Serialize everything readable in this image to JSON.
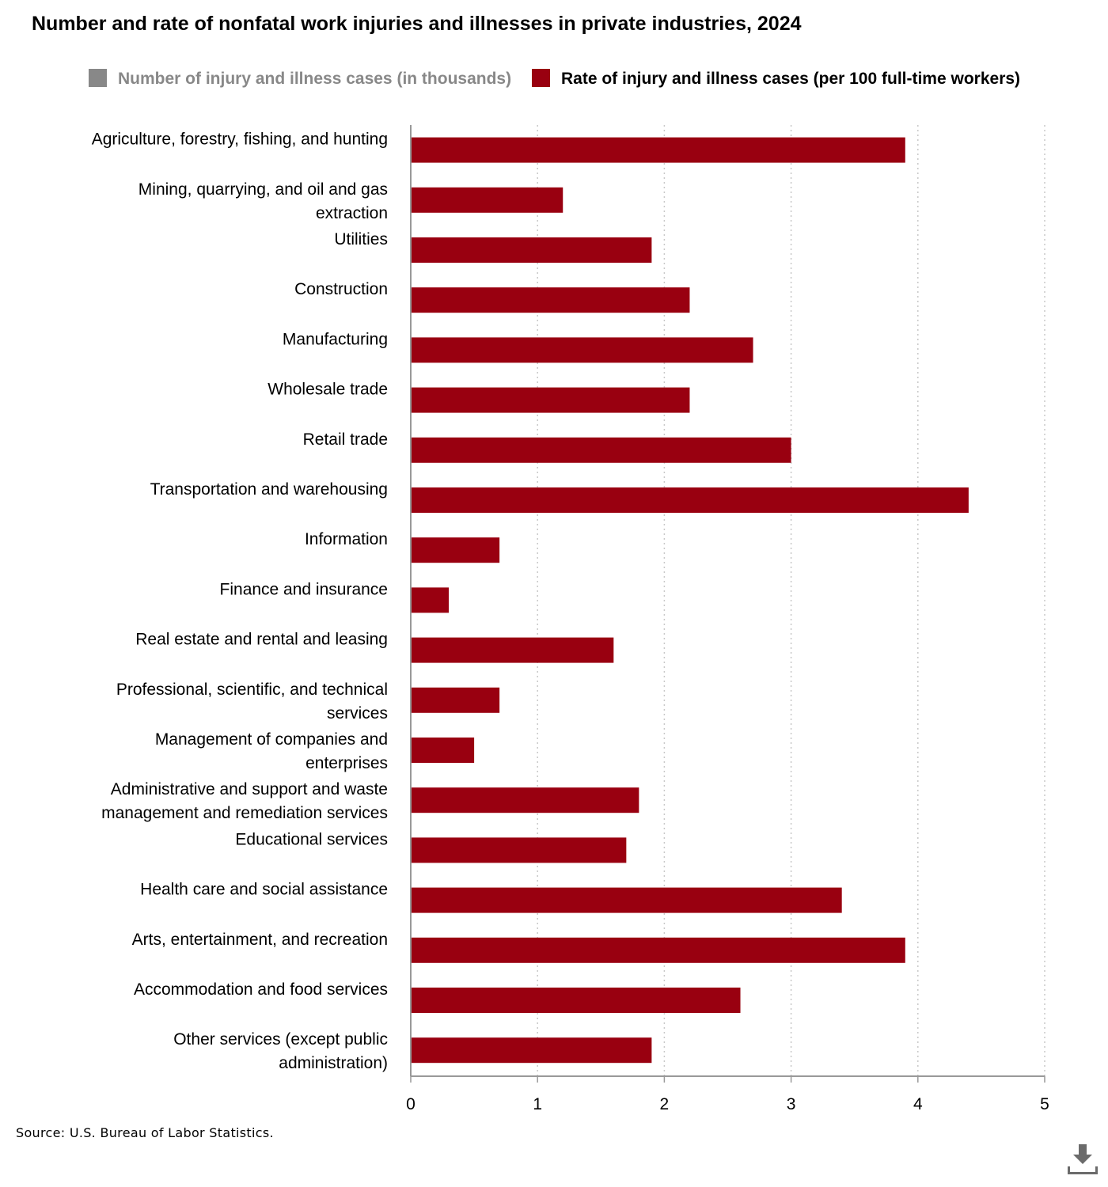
{
  "chart_data": {
    "type": "bar",
    "orientation": "horizontal",
    "title": "Number and rate of nonfatal work injuries and illnesses in private industries, 2024",
    "legend": {
      "placement": "top",
      "items": [
        {
          "label": "Number of injury and illness cases (in thousands)",
          "color": "#888888",
          "visible": false
        },
        {
          "label": "Rate of injury and illness cases (per 100 full-time workers)",
          "color": "#990010",
          "visible": true
        }
      ]
    },
    "categories": [
      "Agriculture, forestry, fishing, and hunting",
      "Mining, quarrying, and oil and gas extraction",
      "Utilities",
      "Construction",
      "Manufacturing",
      "Wholesale trade",
      "Retail trade",
      "Transportation and warehousing",
      "Information",
      "Finance and insurance",
      "Real estate and rental and leasing",
      "Professional, scientific, and technical services",
      "Management of companies and enterprises",
      "Administrative and support and waste management and remediation services",
      "Educational services",
      "Health care and social assistance",
      "Arts, entertainment, and recreation",
      "Accommodation and food services",
      "Other services (except public administration)"
    ],
    "series": [
      {
        "name": "Rate of injury and illness cases (per 100 full-time workers)",
        "color": "#990010",
        "values": [
          3.9,
          1.2,
          1.9,
          2.2,
          2.7,
          2.2,
          3.0,
          4.4,
          0.7,
          0.3,
          1.6,
          0.7,
          0.5,
          1.8,
          1.7,
          3.4,
          3.9,
          2.6,
          1.9
        ]
      }
    ],
    "xlim": [
      0,
      5
    ],
    "xticks": [
      0,
      1,
      2,
      3,
      4,
      5
    ],
    "grid": "vertical dotted",
    "xlabel": "",
    "ylabel": ""
  },
  "source": "Source: U.S. Bureau of Labor Statistics.",
  "download_icon": "download-icon"
}
